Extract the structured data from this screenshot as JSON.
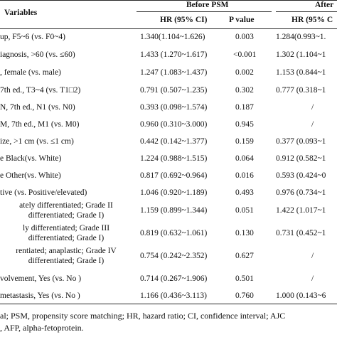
{
  "header": {
    "variables_label": "Variables",
    "before_label": "Before PSM",
    "after_label": "After",
    "col_hr_before": "HR (95% CI)",
    "col_p_before": "P value",
    "col_hr_after": "HR (95% C"
  },
  "rows": [
    {
      "v1": "up, F5~6 (vs. F0~4)",
      "v2": "",
      "hr": "1.340(1.104~1.626)",
      "p": "0.003",
      "hra": "1.284(0.993~1."
    },
    {
      "v1": "iagnosis, >60 (vs. ≤60)",
      "v2": "",
      "hr": "1.433 (1.270~1.617)",
      "p": "<0.001",
      "hra": "1.302 (1.104~1"
    },
    {
      "v1": ", female (vs. male)",
      "v2": "",
      "hr": "1.247 (1.083~1.437)",
      "p": "0.002",
      "hra": "1.153 (0.844~1"
    },
    {
      "v1": "7th ed., T3~4 (vs. T1□2)",
      "v2": "",
      "hr": "0.791 (0.507~1.235)",
      "p": "0.302",
      "hra": "0.777 (0.318~1"
    },
    {
      "v1": "N, 7th ed., N1 (vs. N0)",
      "v2": "",
      "hr": "0.393 (0.098~1.574)",
      "p": "0.187",
      "hra": "/"
    },
    {
      "v1": "M, 7th ed., M1 (vs. M0)",
      "v2": "",
      "hr": "0.960 (0.310~3.000)",
      "p": "0.945",
      "hra": "/"
    },
    {
      "v1": "ize, >1 cm (vs. ≤1 cm)",
      "v2": "",
      "hr": "0.442 (0.142~1.377)",
      "p": "0.159",
      "hra": "0.377 (0.093~1"
    },
    {
      "v1": "e Black(vs. White)",
      "v2": "",
      "hr": "1.224 (0.988~1.515)",
      "p": "0.064",
      "hra": "0.912 (0.582~1"
    },
    {
      "v1": "e Other(vs. White)",
      "v2": "",
      "hr": "0.817 (0.692~0.964)",
      "p": "0.016",
      "hra": "0.593 (0.424~0"
    },
    {
      "v1": "tive (vs. Positive/elevated)",
      "v2": "",
      "hr": "1.046 (0.920~1.189)",
      "p": "0.493",
      "hra": "0.976 (0.734~1"
    },
    {
      "v1": "ately differentiated; Grade II",
      "v2": "differentiated; Grade I)",
      "hr": "1.159 (0.899~1.344)",
      "p": "0.051",
      "hra": "1.422 (1.017~1"
    },
    {
      "v1": "ly differentiated; Grade III",
      "v2": "differentiated; Grade I)",
      "hr": "0.819 (0.632~1.061)",
      "p": "0.130",
      "hra": "0.731 (0.452~1"
    },
    {
      "v1": "rentiated; anaplastic; Grade IV",
      "v2": "differentiated; Grade I)",
      "hr": "0.754 (0.242~2.352)",
      "p": "0.627",
      "hra": "/"
    },
    {
      "v1": "volvement, Yes (vs. No )",
      "v2": "",
      "hr": "0.714 (0.267~1.906)",
      "p": "0.501",
      "hra": "/"
    },
    {
      "v1": "metastasis, Yes (vs. No )",
      "v2": "",
      "hr": "1.166 (0.436~3.113)",
      "p": "0.760",
      "hra": "1.000 (0.143~6"
    }
  ],
  "footnote": {
    "line1": "al; PSM, propensity score matching; HR, hazard ratio; CI, confidence interval; AJC",
    "line2": ", AFP, alpha-fetoprotein."
  }
}
